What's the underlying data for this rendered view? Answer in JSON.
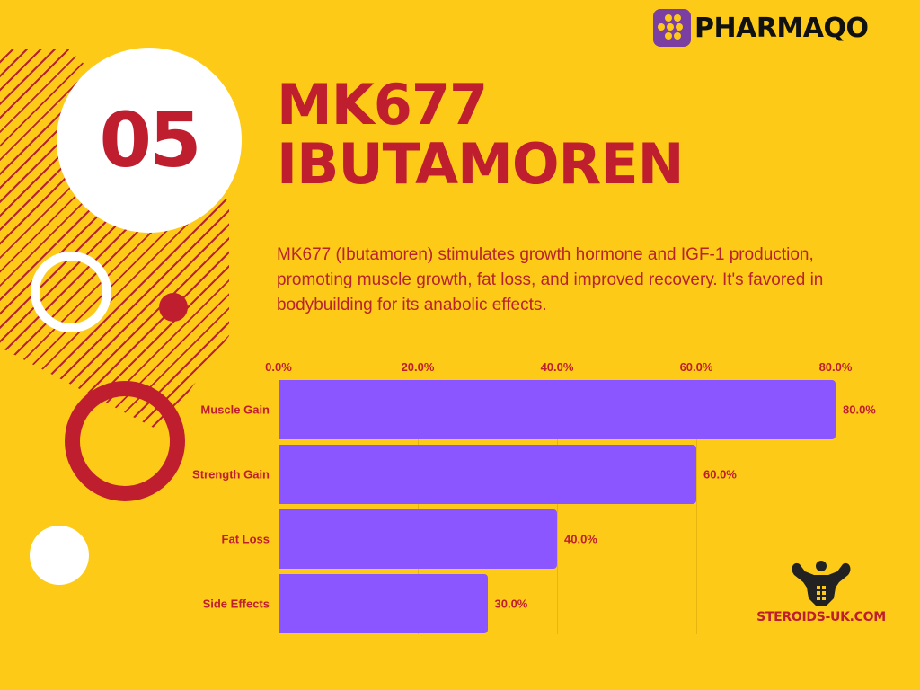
{
  "brand": {
    "name": "PHARMAQO",
    "logo_icon": "dots-grid-icon",
    "logo_color": "#7A3FA0"
  },
  "badge": {
    "number": "05"
  },
  "header": {
    "title_line1": "MK677",
    "title_line2": "IBUTAMOREN"
  },
  "description": "MK677 (Ibutamoren) stimulates growth hormone and IGF-1 production, promoting muscle growth, fat loss, and improved recovery. It's favored in bodybuilding for its anabolic effects.",
  "colors": {
    "background": "#FDCB17",
    "accent_red": "#BF1E2E",
    "bar": "#8B55FF",
    "white": "#FFFFFF"
  },
  "chart_data": {
    "type": "bar",
    "orientation": "horizontal",
    "title": "",
    "xlabel": "",
    "ylabel": "",
    "categories": [
      "Muscle Gain",
      "Strength Gain",
      "Fat Loss",
      "Side Effects"
    ],
    "values": [
      80.0,
      60.0,
      40.0,
      30.0
    ],
    "value_labels": [
      "80.0%",
      "60.0%",
      "40.0%",
      "30.0%"
    ],
    "xlim": [
      0,
      80
    ],
    "x_ticks": [
      "0.0%",
      "20.0%",
      "40.0%",
      "60.0%",
      "80.0%"
    ],
    "x_axis_position": "top",
    "grid": true,
    "legend": "none"
  },
  "footer": {
    "site_name": "STEROIDS-UK.COM",
    "site_icon": "bodybuilder-icon"
  }
}
